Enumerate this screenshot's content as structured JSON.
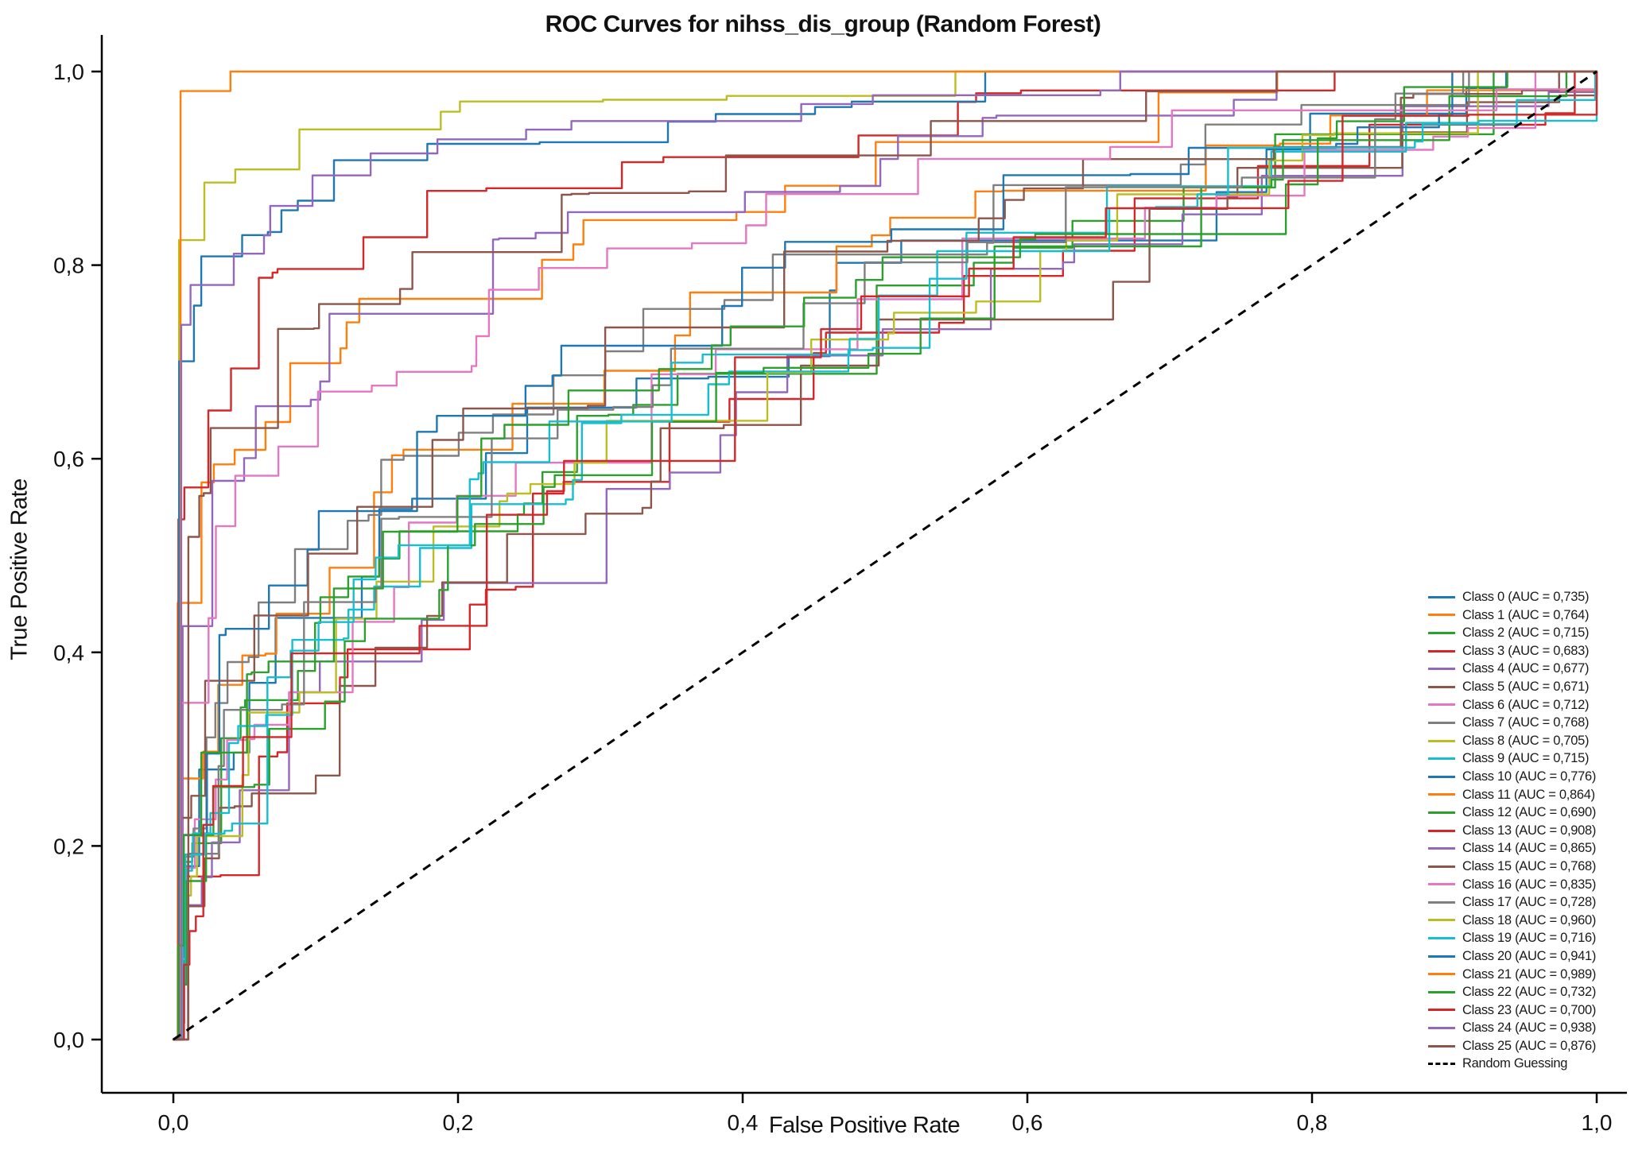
{
  "chart_data": {
    "type": "line",
    "title": "ROC Curves for nihss_dis_group (Random Forest)",
    "xlabel": "False Positive Rate",
    "ylabel": "True Positive Rate",
    "xlim": [
      0,
      1
    ],
    "ylim": [
      0,
      1
    ],
    "grid": false,
    "legend_position": "lower right inside",
    "decimal_separator": ",",
    "tick_values": [
      0,
      0.2,
      0.4,
      0.6,
      0.8,
      1.0
    ],
    "x_tick_labels": [
      "0,0",
      "0,2",
      "0,4",
      "0,6",
      "0,8",
      "1,0"
    ],
    "y_tick_labels": [
      "0,0",
      "0,2",
      "0,4",
      "0,6",
      "0,8",
      "1,0"
    ],
    "series": [
      {
        "label": "Class 0 (AUC = 0,735)",
        "class": 0,
        "auc": 0.735,
        "color": "#1f77b4"
      },
      {
        "label": "Class 1 (AUC = 0,764)",
        "class": 1,
        "auc": 0.764,
        "color": "#ff7f0e"
      },
      {
        "label": "Class 2 (AUC = 0,715)",
        "class": 2,
        "auc": 0.715,
        "color": "#2ca02c"
      },
      {
        "label": "Class 3 (AUC = 0,683)",
        "class": 3,
        "auc": 0.683,
        "color": "#d62728"
      },
      {
        "label": "Class 4 (AUC = 0,677)",
        "class": 4,
        "auc": 0.677,
        "color": "#9467bd"
      },
      {
        "label": "Class 5 (AUC = 0,671)",
        "class": 5,
        "auc": 0.671,
        "color": "#8c564b"
      },
      {
        "label": "Class 6 (AUC = 0,712)",
        "class": 6,
        "auc": 0.712,
        "color": "#e377c2"
      },
      {
        "label": "Class 7 (AUC = 0,768)",
        "class": 7,
        "auc": 0.768,
        "color": "#7f7f7f"
      },
      {
        "label": "Class 8 (AUC = 0,705)",
        "class": 8,
        "auc": 0.705,
        "color": "#bcbd22"
      },
      {
        "label": "Class 9 (AUC = 0,715)",
        "class": 9,
        "auc": 0.715,
        "color": "#17becf"
      },
      {
        "label": "Class 10 (AUC = 0,776)",
        "class": 10,
        "auc": 0.776,
        "color": "#1f77b4"
      },
      {
        "label": "Class 11 (AUC = 0,864)",
        "class": 11,
        "auc": 0.864,
        "color": "#ff7f0e"
      },
      {
        "label": "Class 12 (AUC = 0,690)",
        "class": 12,
        "auc": 0.69,
        "color": "#2ca02c"
      },
      {
        "label": "Class 13 (AUC = 0,908)",
        "class": 13,
        "auc": 0.908,
        "color": "#d62728"
      },
      {
        "label": "Class 14 (AUC = 0,865)",
        "class": 14,
        "auc": 0.865,
        "color": "#9467bd"
      },
      {
        "label": "Class 15 (AUC = 0,768)",
        "class": 15,
        "auc": 0.768,
        "color": "#8c564b"
      },
      {
        "label": "Class 16 (AUC = 0,835)",
        "class": 16,
        "auc": 0.835,
        "color": "#e377c2"
      },
      {
        "label": "Class 17 (AUC = 0,728)",
        "class": 17,
        "auc": 0.728,
        "color": "#7f7f7f"
      },
      {
        "label": "Class 18 (AUC = 0,960)",
        "class": 18,
        "auc": 0.96,
        "color": "#bcbd22"
      },
      {
        "label": "Class 19 (AUC = 0,716)",
        "class": 19,
        "auc": 0.716,
        "color": "#17becf"
      },
      {
        "label": "Class 20 (AUC = 0,941)",
        "class": 20,
        "auc": 0.941,
        "color": "#1f77b4"
      },
      {
        "label": "Class 21 (AUC = 0,989)",
        "class": 21,
        "auc": 0.989,
        "color": "#ff7f0e"
      },
      {
        "label": "Class 22 (AUC = 0,732)",
        "class": 22,
        "auc": 0.732,
        "color": "#2ca02c"
      },
      {
        "label": "Class 23 (AUC = 0,700)",
        "class": 23,
        "auc": 0.7,
        "color": "#d62728"
      },
      {
        "label": "Class 24 (AUC = 0,938)",
        "class": 24,
        "auc": 0.938,
        "color": "#9467bd"
      },
      {
        "label": "Class 25 (AUC = 0,876)",
        "class": 25,
        "auc": 0.876,
        "color": "#8c564b"
      }
    ],
    "reference_line": {
      "label": "Random Guessing",
      "type": "diagonal",
      "from": [
        0,
        0
      ],
      "to": [
        1,
        1
      ],
      "style": "dashed",
      "color": "#000000"
    }
  }
}
